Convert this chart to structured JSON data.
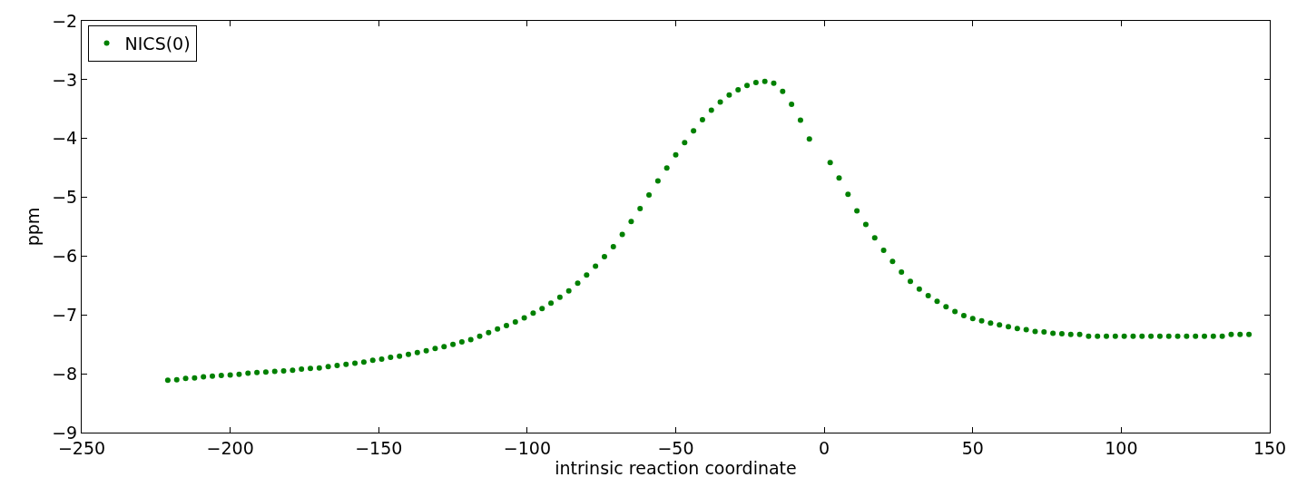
{
  "chart_data": {
    "type": "scatter",
    "xlabel": "intrinsic reaction coordinate",
    "ylabel": "ppm",
    "xlim": [
      -250,
      150
    ],
    "xticks": [
      -250,
      -200,
      -150,
      -100,
      -50,
      0,
      50,
      100,
      150
    ],
    "ylim": [
      -9,
      -2
    ],
    "yticks": [
      -9,
      -8,
      -7,
      -6,
      -5,
      -4,
      -3,
      -2
    ],
    "legend": "top left",
    "marker": "circle",
    "series": [
      {
        "name": "NICS(0)",
        "color": "#008000",
        "x": [
          -221,
          -218,
          -215,
          -212,
          -209,
          -206,
          -203,
          -200,
          -197,
          -194,
          -191,
          -188,
          -185,
          -182,
          -179,
          -176,
          -173,
          -170,
          -167,
          -164,
          -161,
          -158,
          -155,
          -152,
          -149,
          -146,
          -143,
          -140,
          -137,
          -134,
          -131,
          -128,
          -125,
          -122,
          -119,
          -116,
          -113,
          -110,
          -107,
          -104,
          -101,
          -98,
          -95,
          -92,
          -89,
          -86,
          -83,
          -80,
          -77,
          -74,
          -71,
          -68,
          -65,
          -62,
          -59,
          -56,
          -53,
          -50,
          -47,
          -44,
          -41,
          -38,
          -35,
          -32,
          -29,
          -26,
          -23,
          -20,
          -17,
          -14,
          -11,
          -8,
          -5,
          2,
          5,
          8,
          11,
          14,
          17,
          20,
          23,
          26,
          29,
          32,
          35,
          38,
          41,
          44,
          47,
          50,
          53,
          56,
          59,
          62,
          65,
          68,
          71,
          74,
          77,
          80,
          83,
          86,
          89,
          92,
          95,
          98,
          101,
          104,
          107,
          110,
          113,
          116,
          119,
          122,
          125,
          128,
          131,
          134,
          137,
          140,
          143
        ],
        "values": [
          -8.11,
          -8.1,
          -8.08,
          -8.07,
          -8.05,
          -8.04,
          -8.03,
          -8.02,
          -8.01,
          -7.99,
          -7.98,
          -7.97,
          -7.96,
          -7.95,
          -7.94,
          -7.92,
          -7.91,
          -7.9,
          -7.88,
          -7.86,
          -7.84,
          -7.82,
          -7.8,
          -7.77,
          -7.75,
          -7.72,
          -7.7,
          -7.67,
          -7.64,
          -7.61,
          -7.57,
          -7.54,
          -7.5,
          -7.46,
          -7.42,
          -7.36,
          -7.3,
          -7.24,
          -7.18,
          -7.12,
          -7.05,
          -6.97,
          -6.89,
          -6.8,
          -6.7,
          -6.59,
          -6.46,
          -6.32,
          -6.17,
          -6.01,
          -5.84,
          -5.63,
          -5.41,
          -5.19,
          -4.96,
          -4.72,
          -4.5,
          -4.28,
          -4.07,
          -3.87,
          -3.68,
          -3.52,
          -3.38,
          -3.26,
          -3.17,
          -3.1,
          -3.05,
          -3.03,
          -3.06,
          -3.2,
          -3.42,
          -3.69,
          -4.01,
          -4.41,
          -4.67,
          -4.95,
          -5.23,
          -5.46,
          -5.69,
          -5.9,
          -6.09,
          -6.27,
          -6.43,
          -6.56,
          -6.67,
          -6.77,
          -6.86,
          -6.94,
          -7.01,
          -7.06,
          -7.1,
          -7.14,
          -7.17,
          -7.2,
          -7.23,
          -7.25,
          -7.28,
          -7.29,
          -7.31,
          -7.32,
          -7.33,
          -7.33,
          -7.36,
          -7.36,
          -7.36,
          -7.36,
          -7.36,
          -7.36,
          -7.36,
          -7.36,
          -7.36,
          -7.36,
          -7.36,
          -7.36,
          -7.36,
          -7.36,
          -7.36,
          -7.36,
          -7.33,
          -7.33,
          -7.33
        ]
      }
    ]
  }
}
